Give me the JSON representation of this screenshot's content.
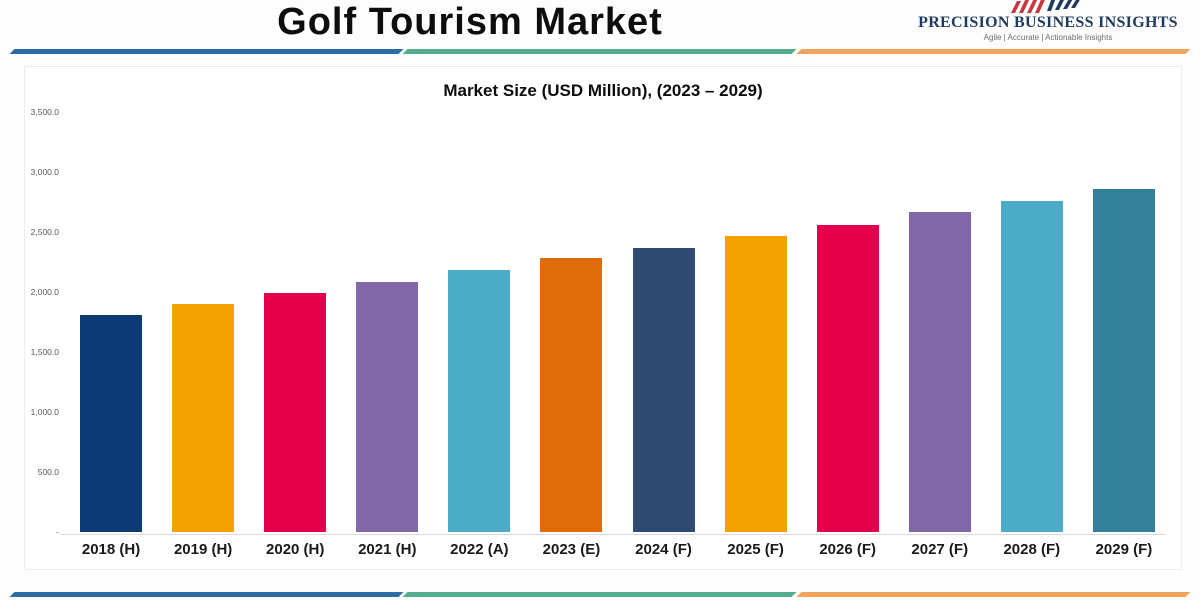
{
  "header": {
    "title": "Golf Tourism Market",
    "logo": {
      "name": "PRECISION BUSINESS INSIGHTS",
      "tagline": "Agile | Accurate | Actionable Insights",
      "name_color": "#1e3a5f",
      "icon": "handshake-icon",
      "icon_colors": {
        "red": "#c8373c",
        "navy": "#1e3a5f"
      }
    },
    "divider_colors": {
      "blue": "#2d6ca5",
      "green": "#52ae8c",
      "orange": "#f2a45c"
    }
  },
  "chart_data": {
    "type": "bar",
    "title": "Market Size (USD Million), (2023 – 2029)",
    "categories": [
      "2018 (H)",
      "2019 (H)",
      "2020 (H)",
      "2021 (H)",
      "2022 (A)",
      "2023 (E)",
      "2024 (F)",
      "2025 (F)",
      "2026 (F)",
      "2027 (F)",
      "2028 (F)",
      "2029 (F)"
    ],
    "values": [
      1810,
      1900,
      1990,
      2080,
      2180,
      2280,
      2370,
      2465,
      2560,
      2665,
      2760,
      2855
    ],
    "bar_colors": [
      "#0c3a74",
      "#f5a201",
      "#e4004b",
      "#8268a9",
      "#4cacc8",
      "#e06c09",
      "#2f4b73",
      "#f5a201",
      "#e4004b",
      "#8268a9",
      "#4cacc8",
      "#33809a"
    ],
    "xlabel": "",
    "ylabel": "",
    "ylim": [
      0,
      3500
    ],
    "ytick_interval": 500,
    "yticks": [
      {
        "label": "3,500.0",
        "value": 3500
      },
      {
        "label": "3,000.0",
        "value": 3000
      },
      {
        "label": "2,500.0",
        "value": 2500
      },
      {
        "label": "2,000.0",
        "value": 2000
      },
      {
        "label": "1,500.0",
        "value": 1500
      },
      {
        "label": "1,000.0",
        "value": 1000
      },
      {
        "label": "500.0",
        "value": 500
      },
      {
        "label": "-",
        "value": 0
      }
    ],
    "grid": false,
    "legend": "none"
  }
}
